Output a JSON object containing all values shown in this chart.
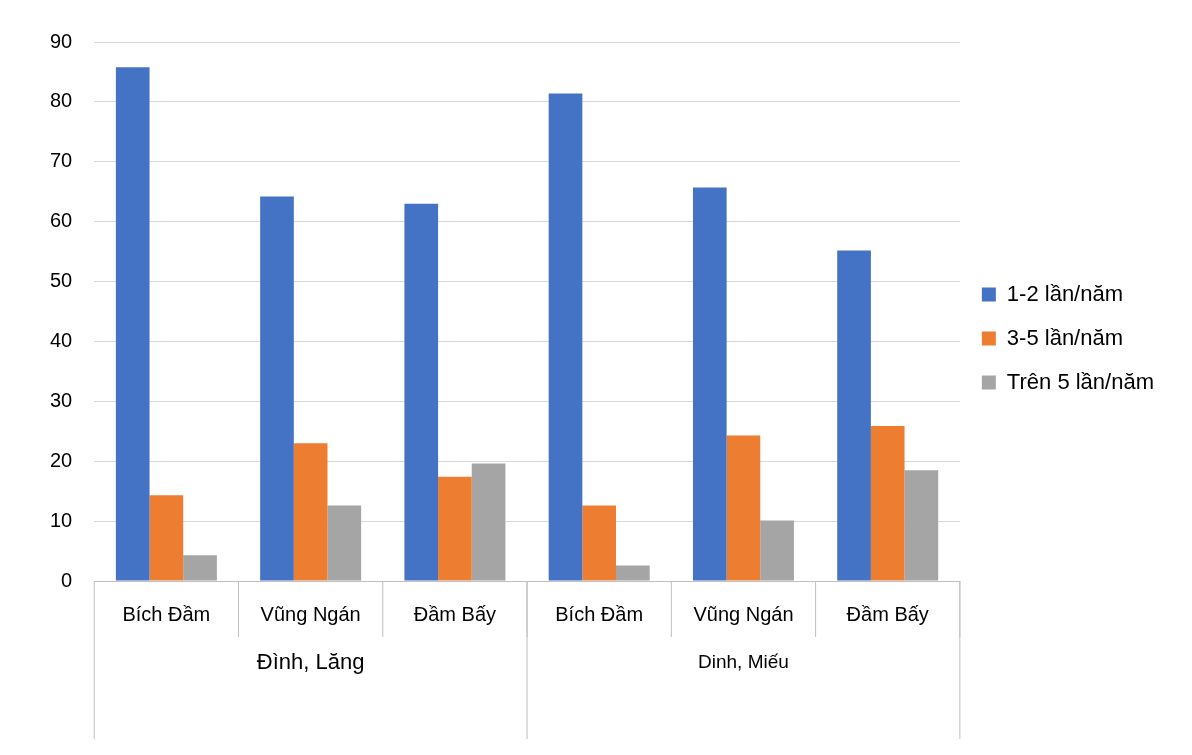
{
  "chart_data": {
    "type": "bar",
    "categories": [
      "Bích Đầm",
      "Vũng Ngán",
      "Đầm Bấy",
      "Bích Đầm",
      "Vũng Ngán",
      "Đầm Bấy"
    ],
    "series": [
      {
        "name": "1-2 lần/năm",
        "color": "#4472c4",
        "values": [
          85.8,
          64.2,
          63.0,
          81.4,
          65.7,
          55.2
        ]
      },
      {
        "name": "3-5 lần/năm",
        "color": "#ed7d31",
        "values": [
          14.3,
          23.0,
          17.4,
          12.6,
          24.3,
          25.9
        ]
      },
      {
        "name": "Trên 5 lần/năm",
        "color": "#a5a5a5",
        "values": [
          4.3,
          12.6,
          19.6,
          2.6,
          10.1,
          18.5
        ]
      }
    ],
    "ylim": [
      0,
      90
    ],
    "yticks": [
      0,
      10,
      20,
      30,
      40,
      50,
      60,
      70,
      80,
      90
    ],
    "grid": "y",
    "legend": "right",
    "annotations": [
      "Đình, Lăng",
      "Dinh, Miếu"
    ]
  }
}
